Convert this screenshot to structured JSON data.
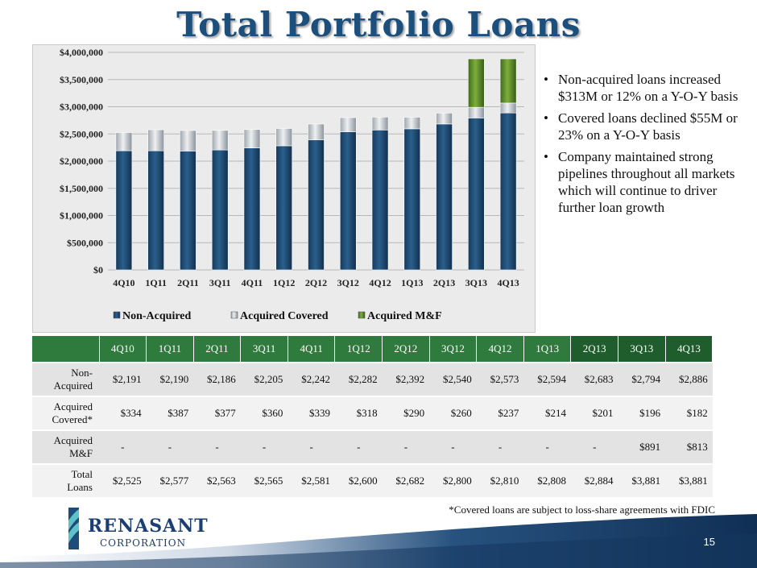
{
  "slide": {
    "title": "Total Portfolio Loans",
    "page_number": "15",
    "footnote": "*Covered loans are subject to loss-share agreements with FDIC"
  },
  "logo": {
    "name": "RENASANT",
    "subtitle": "CORPORATION"
  },
  "bullets": [
    "Non-acquired loans increased $313M or 12% on a Y-O-Y basis",
    "Covered loans declined $55M or 23% on a Y-O-Y basis",
    "Company maintained strong pipelines throughout all markets which will continue to driver further loan growth"
  ],
  "colors": {
    "title": "#1d4f7c",
    "non_acquired": "#1e4b72",
    "acquired_covered": "#c8ccd0",
    "acquired_mf": "#5f8a2c",
    "table_header": "#2f7a3d",
    "table_header_dark": "#1f5d2d"
  },
  "chart_data": {
    "type": "bar",
    "stacked": true,
    "title": "",
    "xlabel": "",
    "ylabel": "",
    "categories": [
      "4Q10",
      "1Q11",
      "2Q11",
      "3Q11",
      "4Q11",
      "1Q12",
      "2Q12",
      "3Q12",
      "4Q12",
      "1Q13",
      "2Q13",
      "3Q13",
      "4Q13"
    ],
    "series": [
      {
        "name": "Non-Acquired",
        "values": [
          2191000,
          2190000,
          2186000,
          2205000,
          2242000,
          2282000,
          2392000,
          2540000,
          2573000,
          2594000,
          2683000,
          2794000,
          2886000
        ]
      },
      {
        "name": "Acquired Covered",
        "values": [
          334000,
          387000,
          377000,
          360000,
          339000,
          318000,
          290000,
          260000,
          237000,
          214000,
          201000,
          196000,
          182000
        ]
      },
      {
        "name": "Acquired M&F",
        "values": [
          0,
          0,
          0,
          0,
          0,
          0,
          0,
          0,
          0,
          0,
          0,
          891000,
          813000
        ]
      }
    ],
    "ylim": [
      0,
      4000000
    ],
    "yticks": [
      0,
      500000,
      1000000,
      1500000,
      2000000,
      2500000,
      3000000,
      3500000,
      4000000
    ],
    "ytick_labels": [
      "$0",
      "$500,000",
      "$1,000,000",
      "$1,500,000",
      "$2,000,000",
      "$2,500,000",
      "$3,000,000",
      "$3,500,000",
      "$4,000,000"
    ],
    "legend_position": "bottom",
    "grid": true
  },
  "table": {
    "headers": [
      "4Q10",
      "1Q11",
      "2Q11",
      "3Q11",
      "4Q11",
      "1Q12",
      "2Q12",
      "3Q12",
      "4Q12",
      "1Q13",
      "2Q13",
      "3Q13",
      "4Q13"
    ],
    "rows": [
      {
        "label": "Non-Acquired",
        "label_lines": [
          "Non-",
          "Acquired"
        ],
        "values": [
          "$2,191",
          "$2,190",
          "$2,186",
          "$2,205",
          "$2,242",
          "$2,282",
          "$2,392",
          "$2,540",
          "$2,573",
          "$2,594",
          "$2,683",
          "$2,794",
          "$2,886"
        ]
      },
      {
        "label": "Acquired Covered*",
        "label_lines": [
          "Acquired",
          "Covered*"
        ],
        "values": [
          "$334",
          "$387",
          "$377",
          "$360",
          "$339",
          "$318",
          "$290",
          "$260",
          "$237",
          "$214",
          "$201",
          "$196",
          "$182"
        ]
      },
      {
        "label": "Acquired M&F",
        "label_lines": [
          "Acquired",
          "M&F"
        ],
        "values": [
          "-",
          "-",
          "-",
          "-",
          "-",
          "-",
          "-",
          "-",
          "-",
          "-",
          "-",
          "$891",
          "$813"
        ]
      },
      {
        "label": "Total Loans",
        "label_lines": [
          "Total",
          "Loans"
        ],
        "values": [
          "$2,525",
          "$2,577",
          "$2,563",
          "$2,565",
          "$2,581",
          "$2,600",
          "$2,682",
          "$2,800",
          "$2,810",
          "$2,808",
          "$2,884",
          "$3,881",
          "$3,881"
        ]
      }
    ]
  }
}
